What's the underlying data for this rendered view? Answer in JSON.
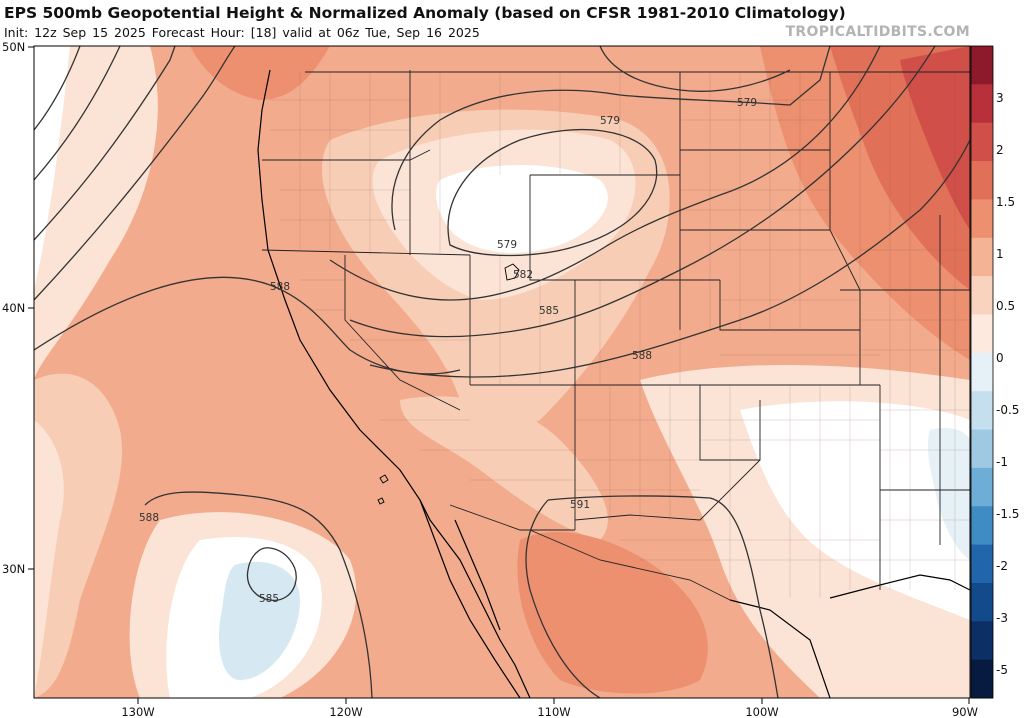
{
  "header": {
    "title": "EPS 500mb Geopotential Height & Normalized Anomaly (based on CFSR 1981-2010 Climatology)",
    "subtitle": "Init: 12z Sep 15 2025   Forecast Hour: [18]   valid at 06z Tue, Sep 16 2025",
    "brand": "TROPICALTIDBITS.COM"
  },
  "map": {
    "lat_labels": [
      "50N",
      "40N",
      "30N"
    ],
    "lon_labels": [
      "130W",
      "120W",
      "110W",
      "100W",
      "90W"
    ],
    "contour_labels": [
      "579",
      "579",
      "579",
      "582",
      "585",
      "588",
      "588",
      "588",
      "591",
      "585"
    ]
  },
  "colorbar": {
    "labels": [
      "3",
      "2",
      "1.5",
      "1",
      "0.5",
      "0",
      "-0.5",
      "-1",
      "-1.5",
      "-2",
      "-3",
      "-5"
    ],
    "colors": [
      "#8c1a2a",
      "#b8303a",
      "#d04f48",
      "#e07058",
      "#ec9070",
      "#f4b394",
      "#fad3bf",
      "#fde9de",
      "#e6f1f7",
      "#c6dfee",
      "#9fc9e3",
      "#6dadd6",
      "#3f8cc4",
      "#2166ac",
      "#134a8c",
      "#0c2f66",
      "#071a40"
    ]
  }
}
